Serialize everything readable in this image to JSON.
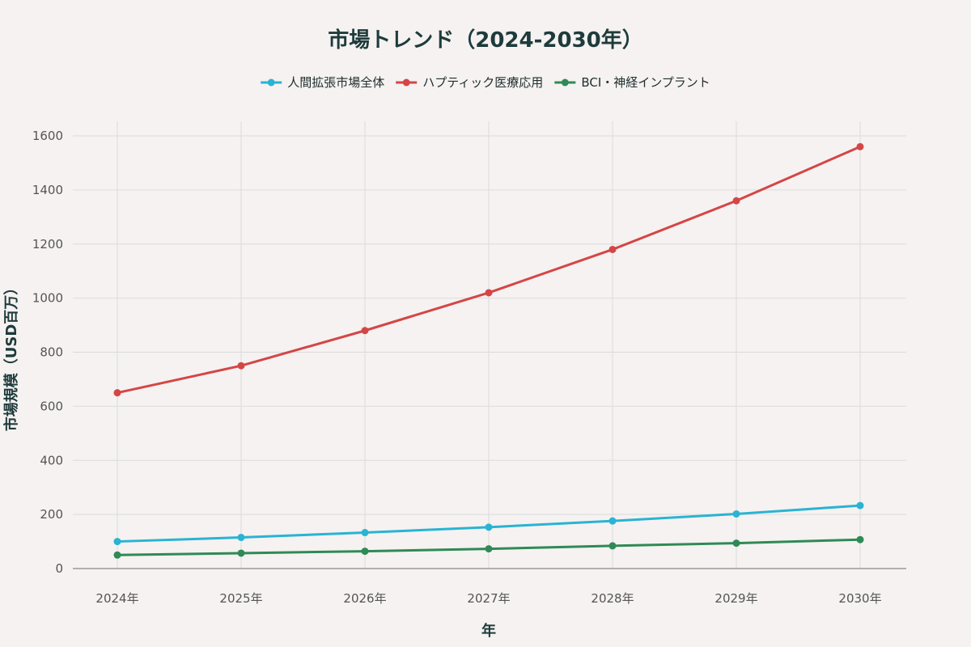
{
  "chart_data": {
    "type": "line",
    "title": "市場トレンド（2024-2030年）",
    "xlabel": "年",
    "ylabel": "市場規模（USD百万）",
    "categories": [
      "2024年",
      "2025年",
      "2026年",
      "2027年",
      "2028年",
      "2029年",
      "2030年"
    ],
    "ylim": [
      0,
      1650
    ],
    "yticks": [
      0,
      200,
      400,
      600,
      800,
      1000,
      1200,
      1400,
      1600
    ],
    "legend_position": "top-center",
    "grid": true,
    "series": [
      {
        "name": "人間拡張市場全体",
        "color": "#2ab3d3",
        "values": [
          100,
          115,
          133,
          153,
          176,
          202,
          233
        ]
      },
      {
        "name": "ハプティック医療応用",
        "color": "#d44646",
        "values": [
          650,
          750,
          880,
          1020,
          1180,
          1360,
          1560
        ]
      },
      {
        "name": "BCI・神経インプラント",
        "color": "#2f8a55",
        "values": [
          50,
          57,
          64,
          73,
          84,
          94,
          107
        ]
      }
    ]
  }
}
